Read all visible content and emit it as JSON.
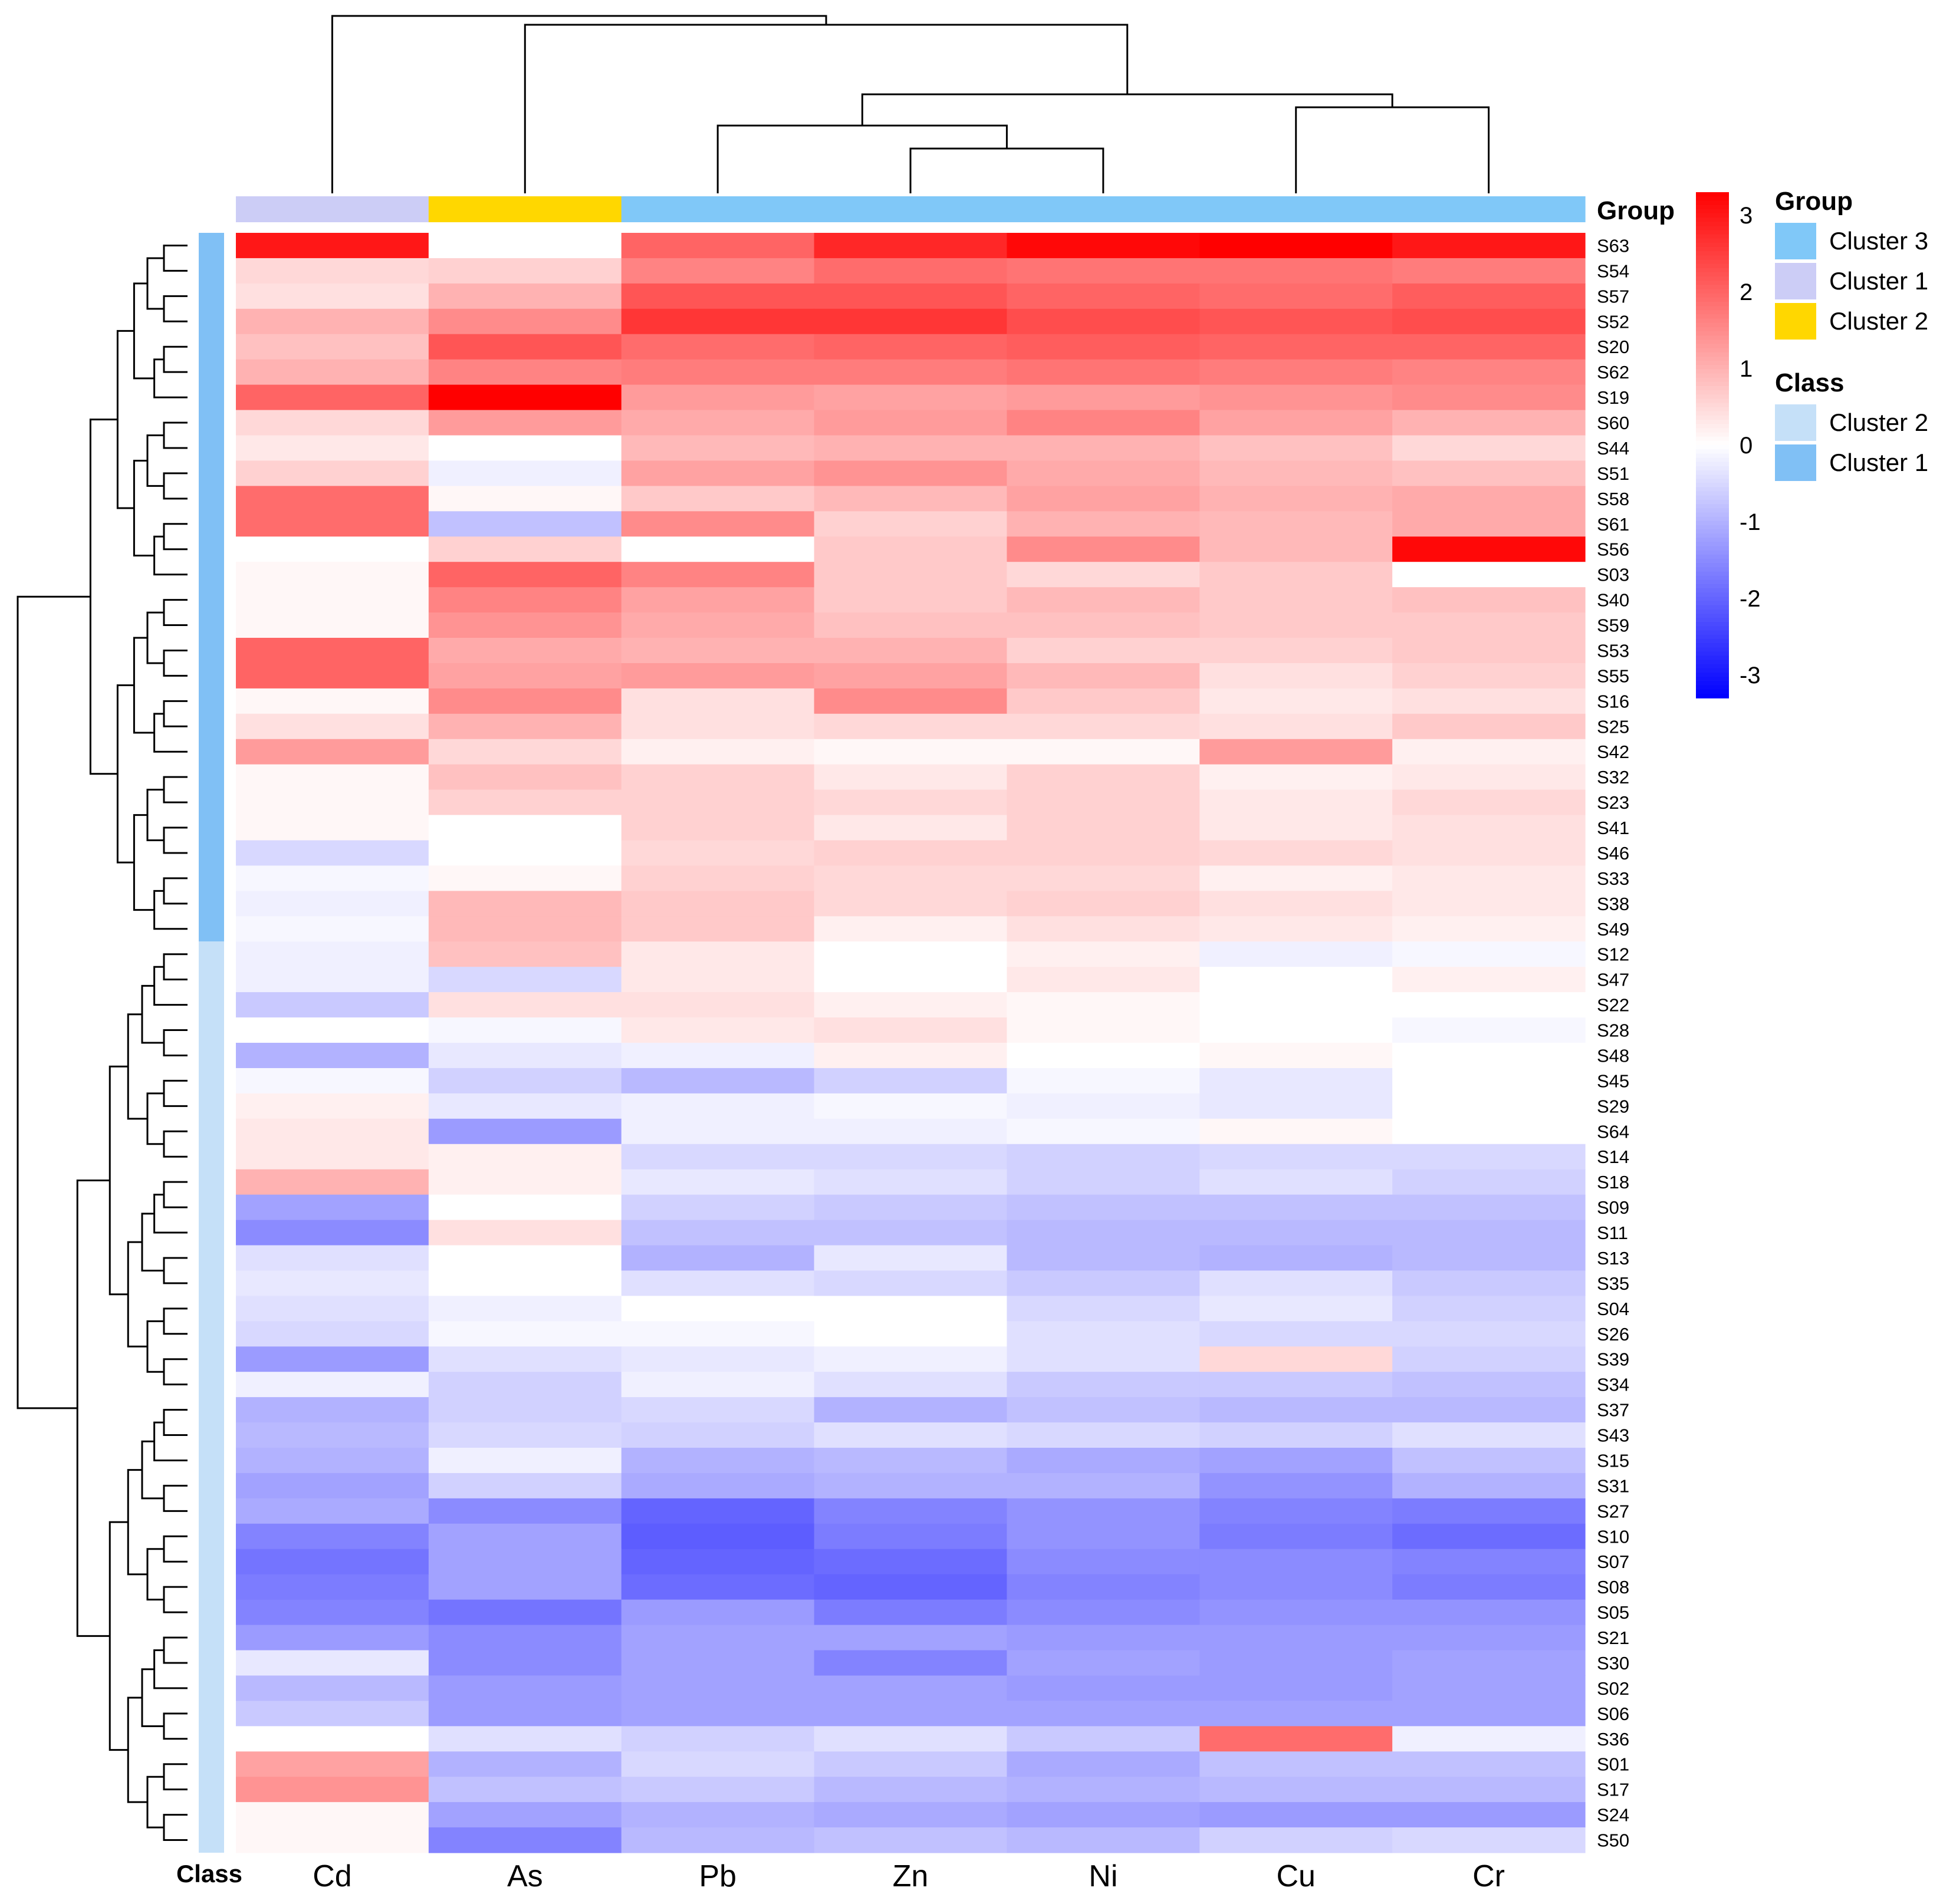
{
  "chart_data": {
    "type": "heatmap",
    "columns": [
      "Cd",
      "As",
      "Pb",
      "Zn",
      "Ni",
      "Cu",
      "Cr"
    ],
    "rows": [
      "S63",
      "S54",
      "S57",
      "S52",
      "S20",
      "S62",
      "S19",
      "S60",
      "S44",
      "S51",
      "S58",
      "S61",
      "S56",
      "S03",
      "S40",
      "S59",
      "S53",
      "S55",
      "S16",
      "S25",
      "S42",
      "S32",
      "S23",
      "S41",
      "S46",
      "S33",
      "S38",
      "S49",
      "S12",
      "S47",
      "S22",
      "S28",
      "S48",
      "S45",
      "S29",
      "S64",
      "S14",
      "S18",
      "S09",
      "S11",
      "S13",
      "S35",
      "S04",
      "S26",
      "S39",
      "S34",
      "S37",
      "S43",
      "S15",
      "S31",
      "S27",
      "S10",
      "S07",
      "S08",
      "S05",
      "S21",
      "S30",
      "S02",
      "S06",
      "S36",
      "S01",
      "S17",
      "S24",
      "S50"
    ],
    "values": [
      [
        3.0,
        0.0,
        2.0,
        2.8,
        3.2,
        3.3,
        3.0
      ],
      [
        0.5,
        0.6,
        1.6,
        1.9,
        1.8,
        1.8,
        1.7
      ],
      [
        0.4,
        1.0,
        2.2,
        2.2,
        2.0,
        1.9,
        2.1
      ],
      [
        1.0,
        1.5,
        2.6,
        2.6,
        2.3,
        2.2,
        2.3
      ],
      [
        0.8,
        2.2,
        1.9,
        2.0,
        2.1,
        2.0,
        2.0
      ],
      [
        1.0,
        1.6,
        1.7,
        1.7,
        1.8,
        1.7,
        1.6
      ],
      [
        2.0,
        3.3,
        1.3,
        1.2,
        1.3,
        1.4,
        1.5
      ],
      [
        0.5,
        1.3,
        1.1,
        1.3,
        1.6,
        1.2,
        1.0
      ],
      [
        0.3,
        0.0,
        0.9,
        1.0,
        1.0,
        0.8,
        0.5
      ],
      [
        0.6,
        -0.2,
        1.2,
        1.4,
        1.1,
        0.9,
        0.8
      ],
      [
        1.9,
        0.1,
        0.7,
        0.9,
        1.2,
        1.0,
        1.1
      ],
      [
        1.9,
        -0.8,
        1.5,
        0.6,
        1.0,
        0.9,
        1.1
      ],
      [
        0.0,
        0.6,
        0.0,
        0.7,
        1.5,
        0.9,
        3.2
      ],
      [
        0.1,
        2.0,
        1.6,
        0.7,
        0.5,
        0.7,
        0.0
      ],
      [
        0.1,
        1.6,
        1.2,
        0.7,
        0.9,
        0.7,
        0.8
      ],
      [
        0.1,
        1.4,
        1.1,
        0.8,
        0.8,
        0.7,
        0.7
      ],
      [
        2.0,
        1.1,
        1.0,
        1.0,
        0.6,
        0.6,
        0.7
      ],
      [
        2.0,
        1.2,
        1.3,
        1.2,
        0.9,
        0.4,
        0.6
      ],
      [
        0.1,
        1.5,
        0.4,
        1.5,
        0.7,
        0.3,
        0.4
      ],
      [
        0.4,
        1.0,
        0.4,
        0.5,
        0.5,
        0.4,
        0.7
      ],
      [
        1.3,
        0.5,
        0.2,
        0.1,
        0.1,
        1.3,
        0.2
      ],
      [
        0.1,
        0.8,
        0.6,
        0.3,
        0.6,
        0.2,
        0.3
      ],
      [
        0.1,
        0.6,
        0.6,
        0.5,
        0.6,
        0.3,
        0.5
      ],
      [
        0.1,
        0.0,
        0.6,
        0.3,
        0.6,
        0.3,
        0.4
      ],
      [
        -0.5,
        0.0,
        0.5,
        0.6,
        0.6,
        0.5,
        0.4
      ],
      [
        -0.1,
        0.1,
        0.6,
        0.5,
        0.5,
        0.2,
        0.3
      ],
      [
        -0.2,
        0.9,
        0.7,
        0.5,
        0.6,
        0.4,
        0.3
      ],
      [
        -0.1,
        0.9,
        0.7,
        0.2,
        0.4,
        0.3,
        0.2
      ],
      [
        -0.2,
        0.8,
        0.3,
        0.0,
        0.2,
        -0.2,
        -0.1
      ],
      [
        -0.2,
        -0.5,
        0.3,
        0.0,
        0.3,
        0.0,
        0.2
      ],
      [
        -0.7,
        0.4,
        0.4,
        0.2,
        0.1,
        0.0,
        0.0
      ],
      [
        0.0,
        -0.1,
        0.3,
        0.4,
        0.1,
        0.0,
        -0.1
      ],
      [
        -1.0,
        -0.3,
        -0.2,
        0.2,
        0.0,
        0.1,
        0.0
      ],
      [
        -0.1,
        -0.6,
        -0.9,
        -0.6,
        -0.1,
        -0.3,
        0.0
      ],
      [
        0.2,
        -0.3,
        -0.2,
        -0.1,
        -0.2,
        -0.3,
        0.0
      ],
      [
        0.3,
        -1.3,
        -0.2,
        -0.2,
        -0.1,
        0.1,
        0.0
      ],
      [
        0.3,
        0.2,
        -0.5,
        -0.5,
        -0.6,
        -0.5,
        -0.5
      ],
      [
        1.0,
        0.2,
        -0.3,
        -0.4,
        -0.6,
        -0.4,
        -0.6
      ],
      [
        -1.2,
        0.0,
        -0.6,
        -0.7,
        -0.8,
        -0.8,
        -0.8
      ],
      [
        -1.5,
        0.4,
        -0.8,
        -0.8,
        -0.9,
        -0.9,
        -0.9
      ],
      [
        -0.4,
        0.0,
        -1.0,
        -0.3,
        -0.9,
        -1.0,
        -0.9
      ],
      [
        -0.3,
        0.0,
        -0.4,
        -0.5,
        -0.7,
        -0.4,
        -0.7
      ],
      [
        -0.4,
        -0.2,
        0.0,
        0.0,
        -0.5,
        -0.3,
        -0.6
      ],
      [
        -0.5,
        -0.1,
        -0.1,
        0.0,
        -0.4,
        -0.5,
        -0.5
      ],
      [
        -1.3,
        -0.4,
        -0.3,
        -0.2,
        -0.4,
        0.5,
        -0.6
      ],
      [
        -0.2,
        -0.6,
        -0.2,
        -0.4,
        -0.7,
        -0.7,
        -0.8
      ],
      [
        -1.0,
        -0.6,
        -0.5,
        -1.0,
        -0.8,
        -0.9,
        -0.9
      ],
      [
        -0.9,
        -0.5,
        -0.6,
        -0.4,
        -0.5,
        -0.6,
        -0.4
      ],
      [
        -1.0,
        -0.2,
        -1.0,
        -0.9,
        -1.1,
        -1.2,
        -0.8
      ],
      [
        -1.2,
        -0.6,
        -1.1,
        -1.0,
        -1.0,
        -1.4,
        -1.0
      ],
      [
        -1.1,
        -1.5,
        -2.0,
        -1.6,
        -1.4,
        -1.6,
        -1.7
      ],
      [
        -1.6,
        -1.2,
        -2.1,
        -1.7,
        -1.4,
        -1.7,
        -1.9
      ],
      [
        -1.8,
        -1.2,
        -2.0,
        -1.9,
        -1.5,
        -1.5,
        -1.6
      ],
      [
        -1.7,
        -1.2,
        -1.9,
        -2.0,
        -1.6,
        -1.5,
        -1.7
      ],
      [
        -1.6,
        -1.8,
        -1.3,
        -1.7,
        -1.5,
        -1.4,
        -1.4
      ],
      [
        -1.3,
        -1.5,
        -1.2,
        -1.2,
        -1.3,
        -1.3,
        -1.3
      ],
      [
        -0.3,
        -1.5,
        -1.2,
        -1.6,
        -1.2,
        -1.3,
        -1.2
      ],
      [
        -0.9,
        -1.3,
        -1.2,
        -1.2,
        -1.3,
        -1.3,
        -1.2
      ],
      [
        -0.7,
        -1.3,
        -1.2,
        -1.2,
        -1.2,
        -1.2,
        -1.2
      ],
      [
        0.0,
        -0.4,
        -0.6,
        -0.4,
        -0.7,
        1.9,
        -0.2
      ],
      [
        1.2,
        -1.0,
        -0.5,
        -0.7,
        -1.1,
        -0.8,
        -0.8
      ],
      [
        1.4,
        -0.8,
        -0.7,
        -0.9,
        -1.0,
        -0.9,
        -0.9
      ],
      [
        0.1,
        -1.2,
        -1.0,
        -1.1,
        -1.2,
        -1.3,
        -1.3
      ],
      [
        0.1,
        -1.6,
        -0.9,
        -0.8,
        -0.9,
        -0.6,
        -0.5
      ]
    ],
    "color_scale": {
      "min": -3.3,
      "max": 3.3,
      "low": "#0000ff",
      "mid": "#ffffff",
      "high": "#ff0000"
    },
    "colorbar_ticks": [
      3,
      2,
      1,
      0,
      -1,
      -2,
      -3
    ],
    "group_annotation": {
      "title": "Group",
      "values": [
        "Cluster 1",
        "Cluster 2",
        "Cluster 3",
        "Cluster 3",
        "Cluster 3",
        "Cluster 3",
        "Cluster 3"
      ]
    },
    "class_annotation": {
      "title": "Class",
      "split_after_row": 28,
      "top_value": "Cluster 1",
      "bottom_value": "Cluster 2"
    },
    "legend": {
      "group_title": "Group",
      "group_items": [
        {
          "label": "Cluster 3",
          "color": "#80c8f8"
        },
        {
          "label": "Cluster 1",
          "color": "#cccdf6"
        },
        {
          "label": "Cluster 2",
          "color": "#ffd700"
        }
      ],
      "class_title": "Class",
      "class_items": [
        {
          "label": "Cluster 2",
          "color": "#c5e0f8"
        },
        {
          "label": "Cluster 1",
          "color": "#80c0f5"
        }
      ]
    },
    "annotation_colors": {
      "Group": {
        "Cluster 1": "#cccdf6",
        "Cluster 2": "#ffd700",
        "Cluster 3": "#80c8f8"
      },
      "Class": {
        "Cluster 1": "#80c0f5",
        "Cluster 2": "#c5e0f8"
      }
    },
    "dendrogram_colors": {
      "line": "#000000"
    },
    "legend_position": "right"
  }
}
